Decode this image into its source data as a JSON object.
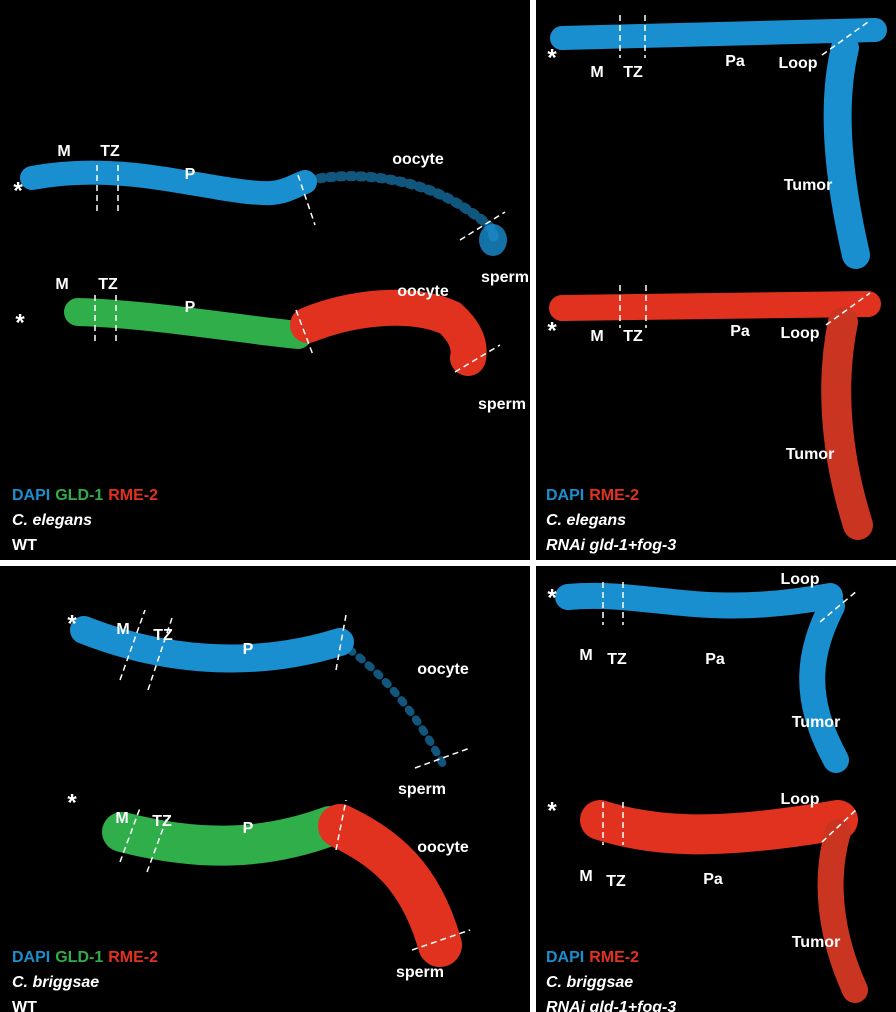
{
  "panels": [
    {
      "labels": [
        "*",
        "M",
        "TZ",
        "P",
        "oocyte",
        "sperm",
        "*",
        "M",
        "TZ",
        "P",
        "oocyte",
        "sperm"
      ],
      "stains": [
        "DAPI",
        "GLD-1",
        "RME-2"
      ],
      "species": "C. elegans",
      "condition": "WT"
    },
    {
      "labels": [
        "*",
        "M",
        "TZ",
        "Pa",
        "Loop",
        "Tumor",
        "*",
        "M",
        "TZ",
        "Pa",
        "Loop",
        "Tumor"
      ],
      "stains": [
        "DAPI",
        "RME-2"
      ],
      "species": "C. elegans",
      "condition": "RNAi gld-1+fog-3"
    },
    {
      "labels": [
        "*",
        "M",
        "TZ",
        "P",
        "oocyte",
        "sperm",
        "*",
        "M",
        "TZ",
        "P",
        "oocyte",
        "sperm"
      ],
      "stains": [
        "DAPI",
        "GLD-1",
        "RME-2"
      ],
      "species": "C. briggsae",
      "condition": "WT"
    },
    {
      "labels": [
        "*",
        "M",
        "TZ",
        "Pa",
        "Loop",
        "Tumor",
        "*",
        "M",
        "TZ",
        "Pa",
        "Loop",
        "Tumor"
      ],
      "stains": [
        "DAPI",
        "RME-2"
      ],
      "species": "C. briggsae",
      "condition": "RNAi gld-1+fog-3"
    }
  ]
}
